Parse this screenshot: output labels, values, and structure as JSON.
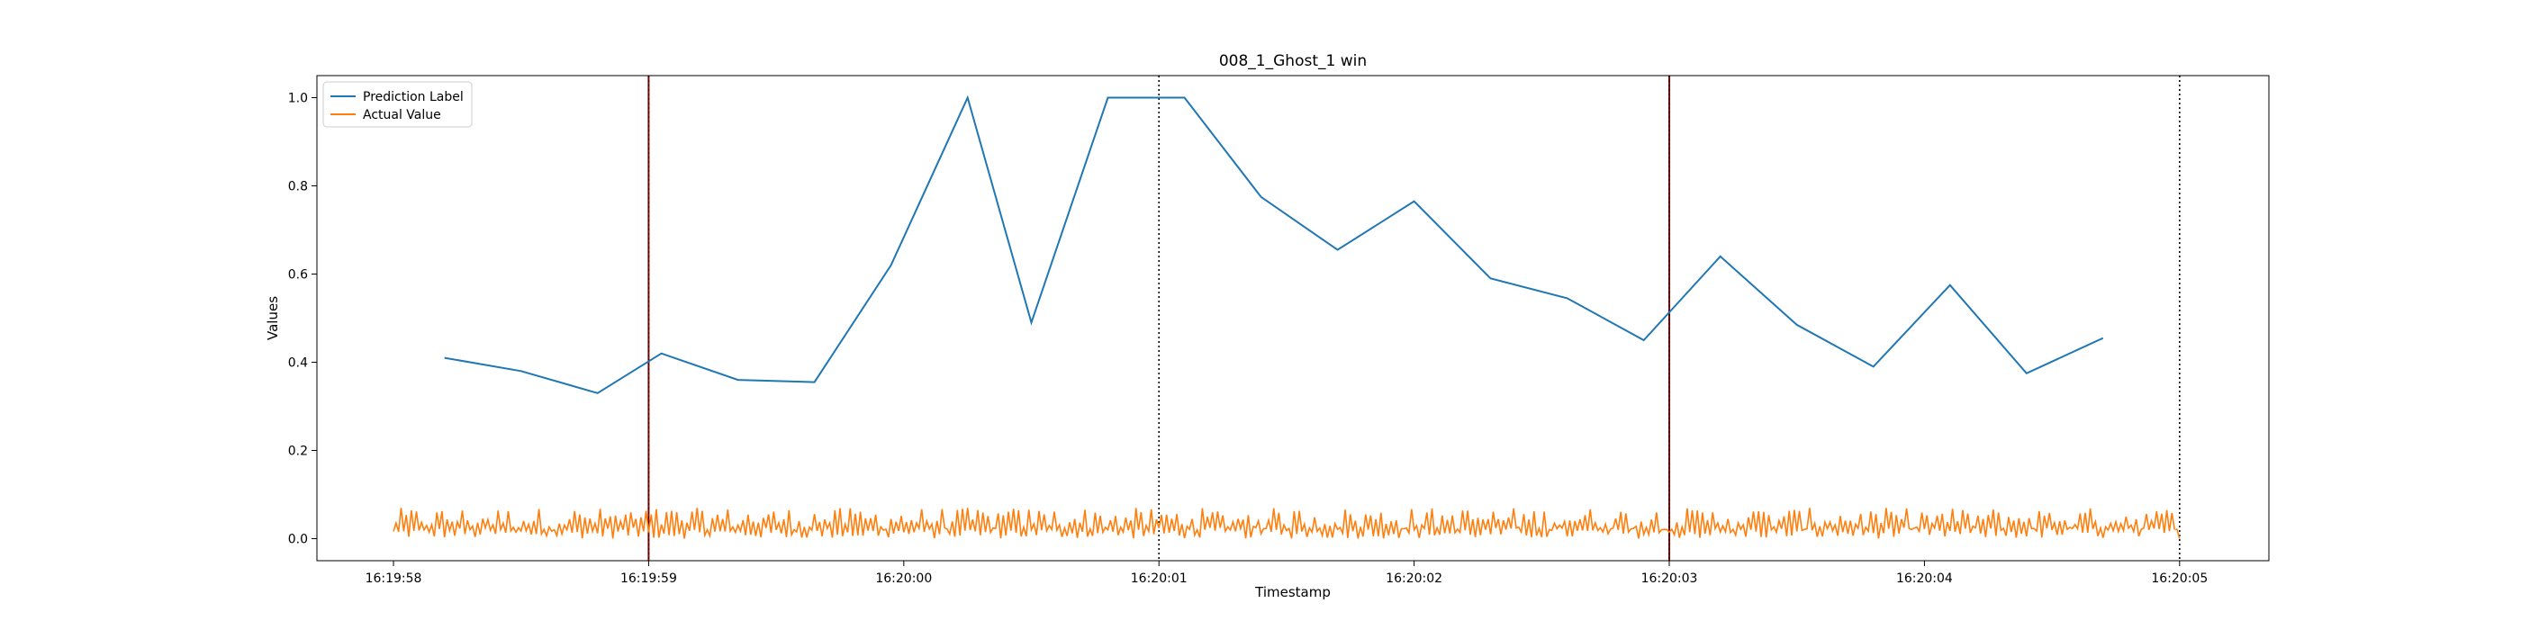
{
  "chart_data": {
    "type": "line",
    "title": "008_1_Ghost_1 win",
    "xlabel": "Timestamp",
    "ylabel": "Values",
    "x_unit": "seconds",
    "xlim": [
      -0.3,
      7.35
    ],
    "ylim": [
      -0.05,
      1.05
    ],
    "x_ticks": [
      {
        "value": 0,
        "label": "16:19:58"
      },
      {
        "value": 1,
        "label": "16:19:59"
      },
      {
        "value": 2,
        "label": "16:20:00"
      },
      {
        "value": 3,
        "label": "16:20:01"
      },
      {
        "value": 4,
        "label": "16:20:02"
      },
      {
        "value": 5,
        "label": "16:20:03"
      },
      {
        "value": 6,
        "label": "16:20:04"
      },
      {
        "value": 7,
        "label": "16:20:05"
      }
    ],
    "y_ticks": [
      0.0,
      0.2,
      0.4,
      0.6,
      0.8,
      1.0
    ],
    "y_tick_labels": [
      "0.0",
      "0.2",
      "0.4",
      "0.6",
      "0.8",
      "1.0"
    ],
    "grid": false,
    "legend_position": "top-left",
    "series": [
      {
        "name": "Prediction Label",
        "color": "#1f77b4",
        "x": [
          0.2,
          0.5,
          0.8,
          1.05,
          1.35,
          1.65,
          1.95,
          2.25,
          2.5,
          2.8,
          3.1,
          3.4,
          3.7,
          4.0,
          4.3,
          4.6,
          4.9,
          5.2,
          5.5,
          5.8,
          6.1,
          6.4,
          6.7
        ],
        "y": [
          0.41,
          0.38,
          0.33,
          0.42,
          0.36,
          0.355,
          0.62,
          1.0,
          0.49,
          1.0,
          1.0,
          0.775,
          0.655,
          0.765,
          0.59,
          0.545,
          0.45,
          0.64,
          0.485,
          0.39,
          0.575,
          0.375,
          0.455
        ]
      },
      {
        "name": "Actual Value",
        "color": "#ff7f0e",
        "x_start": 0.0,
        "x_end": 7.0,
        "y_min": 0.0,
        "y_max": 0.07,
        "description": "Dense oscillating signal between 0.0 and 0.07 across the full window"
      }
    ],
    "vertical_lines": [
      {
        "x": 1.0,
        "style": "solid",
        "color": "#8b0000"
      },
      {
        "x": 3.0,
        "style": "dotted",
        "color": "#000000"
      },
      {
        "x": 5.0,
        "style": "solid",
        "color": "#8b0000"
      },
      {
        "x": 7.0,
        "style": "dotted",
        "color": "#000000"
      }
    ]
  }
}
